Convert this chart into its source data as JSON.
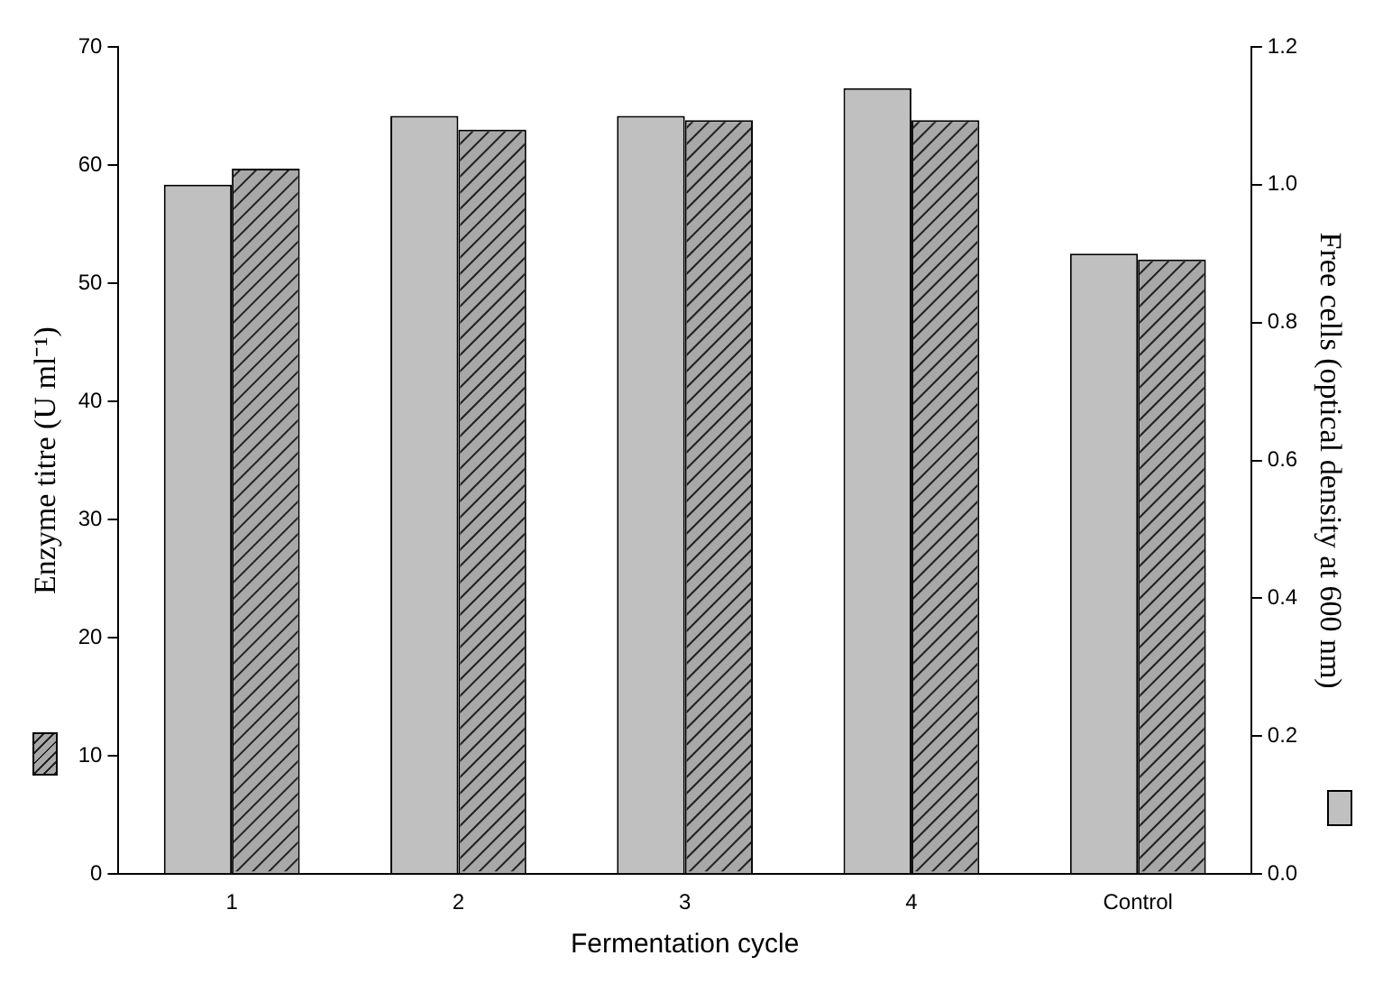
{
  "chart_data": {
    "type": "bar",
    "xlabel": "Fermentation cycle",
    "ylabel": "Enzyme titre (U ml⁻¹)",
    "y2label": "Free cells (optical density at 600 nm)",
    "categories": [
      "1",
      "2",
      "3",
      "4",
      "Control"
    ],
    "series": [
      {
        "color": "#c0c0c0",
        "axis": "y2",
        "values": [
          1.0,
          1.1,
          1.1,
          1.14,
          0.9
        ]
      },
      {
        "color": "#a8a8a8",
        "axis": "y",
        "values": [
          59.7,
          63,
          63.8,
          63.8,
          52
        ]
      }
    ],
    "ylim": [
      0,
      70
    ],
    "yticks": [
      0,
      10,
      20,
      30,
      40,
      50,
      60,
      70
    ],
    "y2lim": [
      0,
      1.2
    ],
    "y2ticks": [
      {
        "value": 0,
        "label": "0.0"
      },
      {
        "value": 0.2,
        "label": "0.2"
      },
      {
        "value": 0.4,
        "label": "0.4"
      },
      {
        "value": 0.6,
        "label": "0.6"
      },
      {
        "value": 0.8,
        "label": "0.8"
      },
      {
        "value": 1.0,
        "label": "1.0"
      },
      {
        "value": 1.2,
        "label": "1.2"
      }
    ],
    "grid": false,
    "legend": false
  }
}
